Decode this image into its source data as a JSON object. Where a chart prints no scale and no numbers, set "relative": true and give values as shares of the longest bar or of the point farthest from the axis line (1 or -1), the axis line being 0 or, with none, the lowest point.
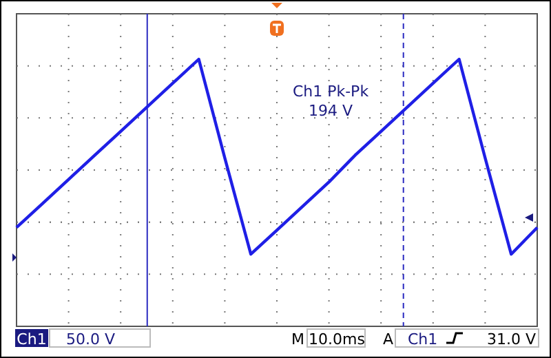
{
  "chart_data": {
    "type": "line",
    "relative": true,
    "grid": true,
    "categories": [
      null,
      null,
      null,
      null,
      null,
      null,
      null,
      null,
      null,
      null,
      null,
      null,
      null,
      null,
      null,
      null,
      null,
      null,
      null,
      null,
      null
    ],
    "series": [
      {
        "color": "#1f1fe6",
        "values": [
          0.37,
          0.46,
          0.55,
          0.64,
          0.73,
          0.82,
          0.91,
          1,
          0.63,
          0.27,
          0.36,
          0.45,
          0.54,
          0.64,
          0.73,
          0.82,
          0.91,
          1,
          0.63,
          0.27,
          0.37
        ]
      }
    ],
    "annotations": [
      "Ch1 Pk-Pk",
      "194 V",
      "Ch1",
      "50.0 V",
      "M",
      "10.0ms",
      "A",
      "Ch1",
      "31.0 V"
    ]
  }
}
